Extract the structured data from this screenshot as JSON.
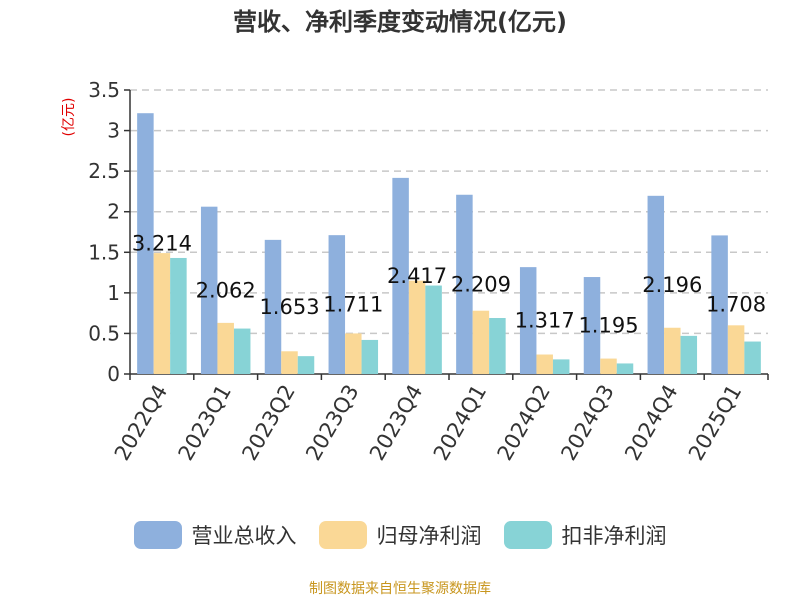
{
  "title": "营收、净利季度变动情况(亿元)",
  "source": "制图数据来自恒生聚源数据库",
  "chart_data": {
    "type": "bar",
    "categories": [
      "2022Q4",
      "2023Q1",
      "2023Q2",
      "2023Q3",
      "2023Q4",
      "2024Q1",
      "2024Q2",
      "2024Q3",
      "2024Q4",
      "2025Q1"
    ],
    "yunit": "(亿元)",
    "ylim": [
      0,
      3.5
    ],
    "yticks": [
      0,
      0.5,
      1,
      1.5,
      2,
      2.5,
      3,
      3.5
    ],
    "ytick_labels": [
      "0",
      "0.5",
      "1",
      "1.5",
      "2",
      "2.5",
      "3",
      "3.5"
    ],
    "grid": true,
    "legend_position": "bottom",
    "series": [
      {
        "name": "营业总收入",
        "color": "#8eb0dd",
        "values": [
          3.214,
          2.062,
          1.653,
          1.711,
          2.417,
          2.209,
          1.317,
          1.195,
          2.196,
          1.708
        ],
        "labels": [
          "3.214",
          "2.062",
          "1.653",
          "1.711",
          "2.417",
          "2.209",
          "1.317",
          "1.195",
          "2.196",
          "1.708"
        ]
      },
      {
        "name": "归母净利润",
        "color": "#fad896",
        "values": [
          1.49,
          0.63,
          0.28,
          0.5,
          1.15,
          0.78,
          0.24,
          0.19,
          0.57,
          0.6
        ]
      },
      {
        "name": "扣非净利润",
        "color": "#87d3d6",
        "values": [
          1.43,
          0.56,
          0.22,
          0.42,
          1.09,
          0.69,
          0.18,
          0.13,
          0.47,
          0.4
        ]
      }
    ]
  }
}
